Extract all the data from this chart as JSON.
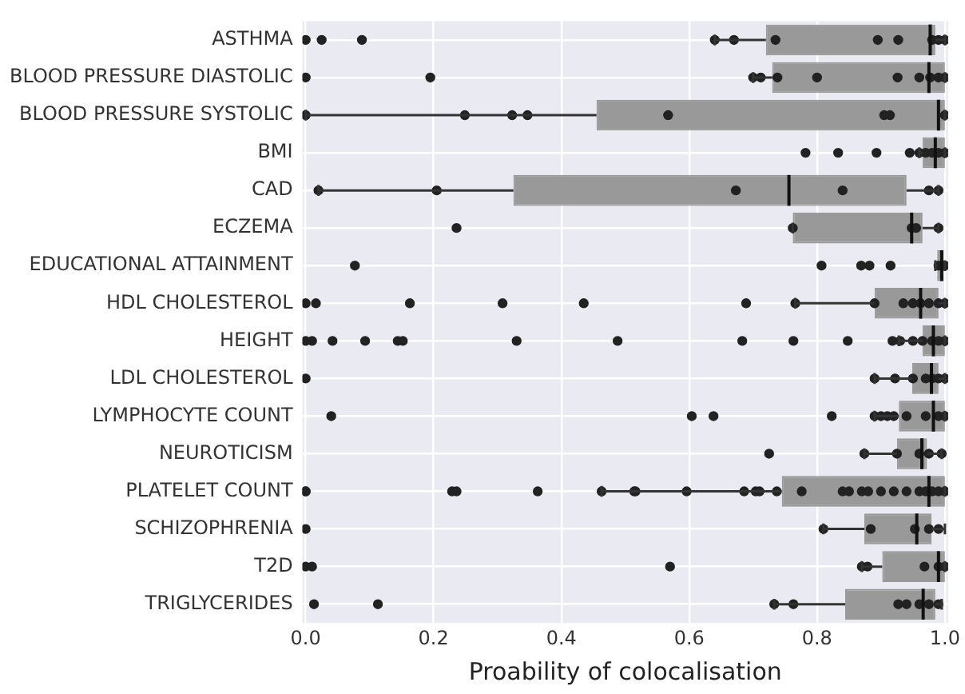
{
  "chart_data": {
    "type": "box",
    "orientation": "horizontal",
    "xlabel": "Proability of colocalisation",
    "categories": [
      "ASTHMA",
      "BLOOD PRESSURE DIASTOLIC",
      "BLOOD PRESSURE SYSTOLIC",
      "BMI",
      "CAD",
      "ECZEMA",
      "EDUCATIONAL ATTAINMENT",
      "HDL CHOLESTEROL",
      "HEIGHT",
      "LDL CHOLESTEROL",
      "LYMPHOCYTE COUNT",
      "NEUROTICISM",
      "PLATELET COUNT",
      "SCHIZOPHRENIA",
      "T2D",
      "TRIGLYCERIDES"
    ],
    "boxes": [
      {
        "low": 0.64,
        "q1": 0.72,
        "median": 0.977,
        "q3": 0.985,
        "high": 1.0
      },
      {
        "low": 0.7,
        "q1": 0.73,
        "median": 0.975,
        "q3": 1.0,
        "high": 1.0
      },
      {
        "low": 0.0,
        "q1": 0.455,
        "median": 0.99,
        "q3": 1.0,
        "high": 1.0
      },
      {
        "low": 0.96,
        "q1": 0.965,
        "median": 0.985,
        "q3": 1.0,
        "high": 1.0
      },
      {
        "low": 0.02,
        "q1": 0.325,
        "median": 0.756,
        "q3": 0.94,
        "high": 0.99
      },
      {
        "low": 0.762,
        "q1": 0.762,
        "median": 0.948,
        "q3": 0.965,
        "high": 0.99
      },
      {
        "low": 0.985,
        "q1": 0.988,
        "median": 0.995,
        "q3": 0.998,
        "high": 1.0
      },
      {
        "low": 0.766,
        "q1": 0.89,
        "median": 0.962,
        "q3": 0.99,
        "high": 1.0
      },
      {
        "low": 0.928,
        "q1": 0.965,
        "median": 0.982,
        "q3": 1.0,
        "high": 1.0
      },
      {
        "low": 0.89,
        "q1": 0.949,
        "median": 0.979,
        "q3": 0.99,
        "high": 1.0
      },
      {
        "low": 0.89,
        "q1": 0.928,
        "median": 0.982,
        "q3": 1.0,
        "high": 1.0
      },
      {
        "low": 0.874,
        "q1": 0.925,
        "median": 0.964,
        "q3": 0.972,
        "high": 0.995
      },
      {
        "low": 0.463,
        "q1": 0.745,
        "median": 0.975,
        "q3": 1.0,
        "high": 1.0
      },
      {
        "low": 0.81,
        "q1": 0.874,
        "median": 0.956,
        "q3": 0.979,
        "high": 1.0
      },
      {
        "low": 0.87,
        "q1": 0.902,
        "median": 0.99,
        "q3": 1.0,
        "high": 1.0
      },
      {
        "low": 0.733,
        "q1": 0.844,
        "median": 0.966,
        "q3": 0.985,
        "high": 0.995
      }
    ],
    "color": "#999999",
    "series": [
      {
        "type": "scatter",
        "color": "#222222",
        "marker": "circle",
        "x": [
          "ASTHMA",
          "ASTHMA",
          "ASTHMA",
          "ASTHMA",
          "ASTHMA",
          "ASTHMA",
          "ASTHMA",
          "ASTHMA",
          "ASTHMA",
          "ASTHMA",
          "ASTHMA",
          "BLOOD PRESSURE DIASTOLIC",
          "BLOOD PRESSURE DIASTOLIC",
          "BLOOD PRESSURE DIASTOLIC",
          "BLOOD PRESSURE DIASTOLIC",
          "BLOOD PRESSURE DIASTOLIC",
          "BLOOD PRESSURE DIASTOLIC",
          "BLOOD PRESSURE DIASTOLIC",
          "BLOOD PRESSURE DIASTOLIC",
          "BLOOD PRESSURE DIASTOLIC",
          "BLOOD PRESSURE DIASTOLIC",
          "BLOOD PRESSURE DIASTOLIC",
          "BLOOD PRESSURE SYSTOLIC",
          "BLOOD PRESSURE SYSTOLIC",
          "BLOOD PRESSURE SYSTOLIC",
          "BLOOD PRESSURE SYSTOLIC",
          "BLOOD PRESSURE SYSTOLIC",
          "BLOOD PRESSURE SYSTOLIC",
          "BLOOD PRESSURE SYSTOLIC",
          "BLOOD PRESSURE SYSTOLIC",
          "BMI",
          "BMI",
          "BMI",
          "BMI",
          "BMI",
          "BMI",
          "BMI",
          "BMI",
          "BMI",
          "CAD",
          "CAD",
          "CAD",
          "CAD",
          "CAD",
          "CAD",
          "ECZEMA",
          "ECZEMA",
          "ECZEMA",
          "ECZEMA",
          "ECZEMA",
          "EDUCATIONAL ATTAINMENT",
          "EDUCATIONAL ATTAINMENT",
          "EDUCATIONAL ATTAINMENT",
          "EDUCATIONAL ATTAINMENT",
          "EDUCATIONAL ATTAINMENT",
          "EDUCATIONAL ATTAINMENT",
          "EDUCATIONAL ATTAINMENT",
          "HDL CHOLESTEROL",
          "HDL CHOLESTEROL",
          "HDL CHOLESTEROL",
          "HDL CHOLESTEROL",
          "HDL CHOLESTEROL",
          "HDL CHOLESTEROL",
          "HDL CHOLESTEROL",
          "HDL CHOLESTEROL",
          "HDL CHOLESTEROL",
          "HDL CHOLESTEROL",
          "HDL CHOLESTEROL",
          "HDL CHOLESTEROL",
          "HDL CHOLESTEROL",
          "HDL CHOLESTEROL",
          "HEIGHT",
          "HEIGHT",
          "HEIGHT",
          "HEIGHT",
          "HEIGHT",
          "HEIGHT",
          "HEIGHT",
          "HEIGHT",
          "HEIGHT",
          "HEIGHT",
          "HEIGHT",
          "HEIGHT",
          "HEIGHT",
          "HEIGHT",
          "HEIGHT",
          "HEIGHT",
          "HEIGHT",
          "HEIGHT",
          "LDL CHOLESTEROL",
          "LDL CHOLESTEROL",
          "LDL CHOLESTEROL",
          "LDL CHOLESTEROL",
          "LDL CHOLESTEROL",
          "LDL CHOLESTEROL",
          "LDL CHOLESTEROL",
          "LDL CHOLESTEROL",
          "LYMPHOCYTE COUNT",
          "LYMPHOCYTE COUNT",
          "LYMPHOCYTE COUNT",
          "LYMPHOCYTE COUNT",
          "LYMPHOCYTE COUNT",
          "LYMPHOCYTE COUNT",
          "LYMPHOCYTE COUNT",
          "LYMPHOCYTE COUNT",
          "LYMPHOCYTE COUNT",
          "LYMPHOCYTE COUNT",
          "LYMPHOCYTE COUNT",
          "LYMPHOCYTE COUNT",
          "NEUROTICISM",
          "NEUROTICISM",
          "NEUROTICISM",
          "NEUROTICISM",
          "NEUROTICISM",
          "NEUROTICISM",
          "PLATELET COUNT",
          "PLATELET COUNT",
          "PLATELET COUNT",
          "PLATELET COUNT",
          "PLATELET COUNT",
          "PLATELET COUNT",
          "PLATELET COUNT",
          "PLATELET COUNT",
          "PLATELET COUNT",
          "PLATELET COUNT",
          "PLATELET COUNT",
          "PLATELET COUNT",
          "PLATELET COUNT",
          "PLATELET COUNT",
          "PLATELET COUNT",
          "PLATELET COUNT",
          "PLATELET COUNT",
          "PLATELET COUNT",
          "PLATELET COUNT",
          "PLATELET COUNT",
          "PLATELET COUNT",
          "PLATELET COUNT",
          "PLATELET COUNT",
          "PLATELET COUNT",
          "PLATELET COUNT",
          "PLATELET COUNT",
          "SCHIZOPHRENIA",
          "SCHIZOPHRENIA",
          "SCHIZOPHRENIA",
          "SCHIZOPHRENIA",
          "SCHIZOPHRENIA",
          "SCHIZOPHRENIA",
          "T2D",
          "T2D",
          "T2D",
          "T2D",
          "T2D",
          "T2D",
          "T2D",
          "T2D",
          "TRIGLYCERIDES",
          "TRIGLYCERIDES",
          "TRIGLYCERIDES",
          "TRIGLYCERIDES",
          "TRIGLYCERIDES",
          "TRIGLYCERIDES",
          "TRIGLYCERIDES",
          "TRIGLYCERIDES",
          "TRIGLYCERIDES"
        ],
        "values": [
          0.0,
          0.025,
          0.088,
          0.64,
          0.67,
          0.735,
          0.895,
          0.927,
          0.98,
          0.99,
          1.0,
          0.0,
          0.195,
          0.7,
          0.712,
          0.738,
          0.8,
          0.926,
          0.96,
          0.977,
          0.99,
          1.0,
          0.0,
          0.249,
          0.323,
          0.347,
          0.567,
          0.905,
          0.914,
          1.0,
          0.782,
          0.833,
          0.893,
          0.945,
          0.96,
          0.97,
          0.98,
          0.99,
          1.0,
          0.02,
          0.205,
          0.673,
          0.84,
          0.975,
          0.99,
          0.236,
          0.762,
          0.948,
          0.955,
          0.99,
          0.077,
          0.807,
          0.869,
          0.882,
          0.915,
          0.99,
          1.0,
          0.0,
          0.016,
          0.163,
          0.308,
          0.435,
          0.689,
          0.766,
          0.89,
          0.935,
          0.95,
          0.962,
          0.975,
          0.99,
          1.0,
          0.0,
          0.01,
          0.042,
          0.093,
          0.144,
          0.152,
          0.33,
          0.488,
          0.683,
          0.763,
          0.848,
          0.918,
          0.93,
          0.95,
          0.965,
          0.98,
          0.99,
          1.0,
          0.0,
          0.89,
          0.922,
          0.95,
          0.97,
          0.98,
          0.99,
          1.0,
          0.04,
          0.604,
          0.638,
          0.823,
          0.89,
          0.9,
          0.91,
          0.92,
          0.94,
          0.97,
          0.99,
          1.0,
          0.725,
          0.874,
          0.925,
          0.96,
          0.975,
          0.995,
          0.0,
          0.0,
          0.229,
          0.236,
          0.363,
          0.463,
          0.514,
          0.516,
          0.596,
          0.686,
          0.704,
          0.71,
          0.737,
          0.776,
          0.84,
          0.85,
          0.87,
          0.88,
          0.9,
          0.92,
          0.94,
          0.96,
          0.97,
          0.98,
          0.99,
          1.0,
          0.0,
          0.81,
          0.884,
          0.953,
          0.975,
          0.99,
          0.0,
          0.01,
          0.57,
          0.87,
          0.879,
          0.968,
          0.99,
          1.0,
          0.013,
          0.113,
          0.733,
          0.763,
          0.927,
          0.94,
          0.96,
          0.975,
          0.99
        ]
      }
    ],
    "xlim": [
      -0.005,
      1.005
    ],
    "xticks": [
      {
        "value": 0,
        "label": "0.0"
      },
      0.2,
      0.4,
      0.6,
      0.8,
      {
        "value": 1,
        "label": "1.0"
      }
    ],
    "grid": true,
    "legend": false
  }
}
